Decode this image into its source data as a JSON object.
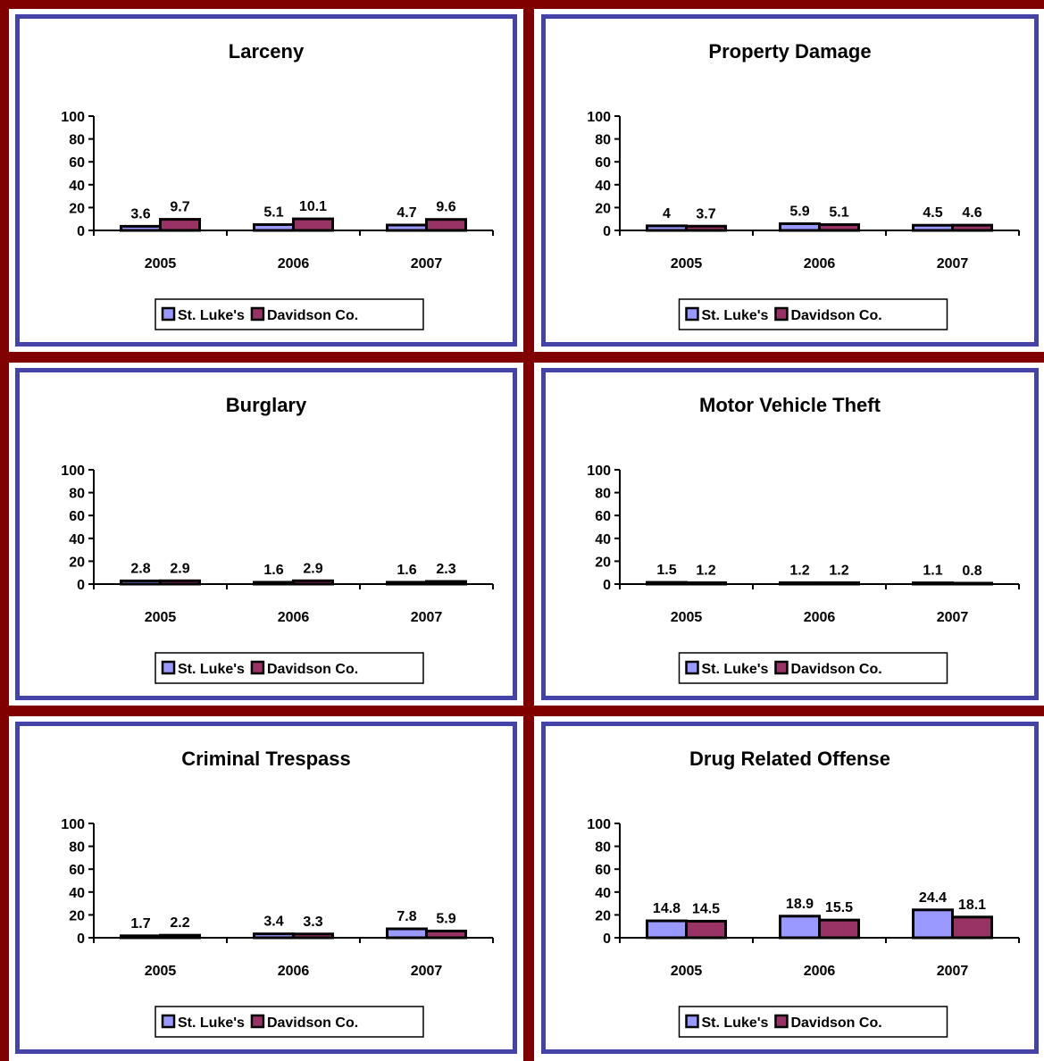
{
  "colors": {
    "frame": "#800000",
    "panel_border": "#4444a8",
    "st_lukes": "#9999ff",
    "davidson": "#993366"
  },
  "chart_data": [
    {
      "type": "bar",
      "title": "Larceny",
      "categories": [
        "2005",
        "2006",
        "2007"
      ],
      "series": [
        {
          "name": "St. Luke's",
          "values": [
            3.6,
            5.1,
            4.7
          ]
        },
        {
          "name": "Davidson Co.",
          "values": [
            9.7,
            10.1,
            9.6
          ]
        }
      ],
      "ylim": [
        0,
        100
      ],
      "yticks": [
        "0",
        "20",
        "40",
        "60",
        "80",
        "100"
      ],
      "legend": "bottom"
    },
    {
      "type": "bar",
      "title": "Property Damage",
      "categories": [
        "2005",
        "2006",
        "2007"
      ],
      "series": [
        {
          "name": "St. Luke's",
          "values": [
            4,
            5.9,
            4.5
          ]
        },
        {
          "name": "Davidson Co.",
          "values": [
            3.7,
            5.1,
            4.6
          ]
        }
      ],
      "ylim": [
        0,
        100
      ],
      "yticks": [
        "0",
        "20",
        "40",
        "60",
        "80",
        "100"
      ],
      "legend": "bottom"
    },
    {
      "type": "bar",
      "title": "Burglary",
      "categories": [
        "2005",
        "2006",
        "2007"
      ],
      "series": [
        {
          "name": "St. Luke's",
          "values": [
            2.8,
            1.6,
            1.6
          ]
        },
        {
          "name": "Davidson Co.",
          "values": [
            2.9,
            2.9,
            2.3
          ]
        }
      ],
      "ylim": [
        0,
        100
      ],
      "yticks": [
        "0",
        "20",
        "40",
        "60",
        "80",
        "100"
      ],
      "legend": "bottom"
    },
    {
      "type": "bar",
      "title": "Motor Vehicle Theft",
      "categories": [
        "2005",
        "2006",
        "2007"
      ],
      "series": [
        {
          "name": "St. Luke's",
          "values": [
            1.5,
            1.2,
            1.1
          ]
        },
        {
          "name": "Davidson Co.",
          "values": [
            1.2,
            1.2,
            0.8
          ]
        }
      ],
      "ylim": [
        0,
        100
      ],
      "yticks": [
        "0",
        "20",
        "40",
        "60",
        "80",
        "100"
      ],
      "legend": "bottom"
    },
    {
      "type": "bar",
      "title": "Criminal Trespass",
      "categories": [
        "2005",
        "2006",
        "2007"
      ],
      "series": [
        {
          "name": "St. Luke's",
          "values": [
            1.7,
            3.4,
            7.8
          ]
        },
        {
          "name": "Davidson Co.",
          "values": [
            2.2,
            3.3,
            5.9
          ]
        }
      ],
      "ylim": [
        0,
        100
      ],
      "yticks": [
        "0",
        "20",
        "40",
        "60",
        "80",
        "100"
      ],
      "legend": "bottom"
    },
    {
      "type": "bar",
      "title": "Drug Related Offense",
      "categories": [
        "2005",
        "2006",
        "2007"
      ],
      "series": [
        {
          "name": "St. Luke's",
          "values": [
            14.8,
            18.9,
            24.4
          ]
        },
        {
          "name": "Davidson Co.",
          "values": [
            14.5,
            15.5,
            18.1
          ]
        }
      ],
      "ylim": [
        0,
        100
      ],
      "yticks": [
        "0",
        "20",
        "40",
        "60",
        "80",
        "100"
      ],
      "legend": "bottom"
    }
  ]
}
